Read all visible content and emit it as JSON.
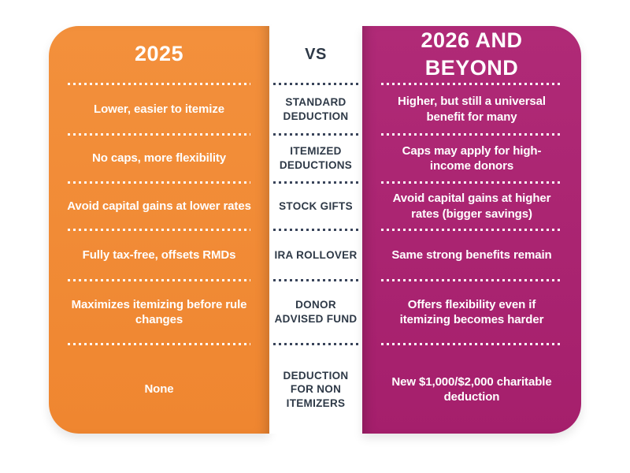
{
  "comparison": {
    "left": {
      "title": "2025",
      "accent_color": "#F18A34",
      "rows": [
        "Lower, easier to itemize",
        "No caps, more flexibility",
        "Avoid capital gains at lower rates",
        "Fully tax-free, offsets RMDs",
        "Maximizes itemizing before rule changes",
        "None"
      ]
    },
    "middle": {
      "title": "VS",
      "text_color": "#2E3947",
      "categories": [
        "STANDARD DEDUCTION",
        "ITEMIZED DEDUCTIONS",
        "STOCK GIFTS",
        "IRA ROLLOVER",
        "DONOR ADVISED FUND",
        "DEDUCTION FOR NON ITEMIZERS"
      ]
    },
    "right": {
      "title": "2026 AND BEYOND",
      "accent_color": "#AB2273",
      "rows": [
        "Higher, but still a universal benefit for many",
        "Caps may apply for high-income donors",
        "Avoid capital gains at higher rates (bigger savings)",
        "Same strong benefits remain",
        "Offers flexibility even if itemizing becomes harder",
        "New $1,000/$2,000 charitable deduction"
      ]
    }
  }
}
